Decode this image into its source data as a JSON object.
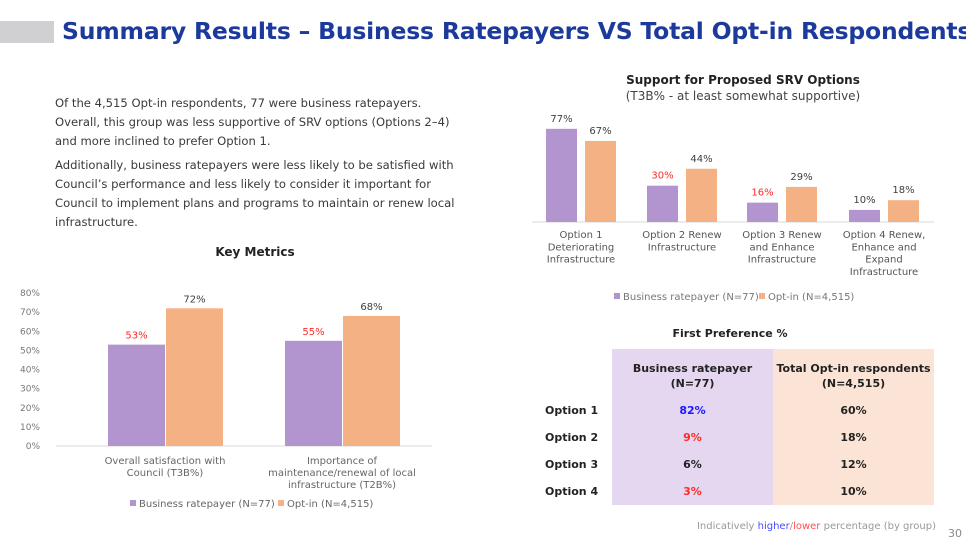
{
  "header": {
    "title": "Summary Results – Business Ratepayers VS Total Opt-in Respondents"
  },
  "intro": {
    "paragraph1": "Of the 4,515 Opt-in respondents, 77 were business ratepayers. Overall, this group was less supportive of SRV options (Options 2–4) and more inclined to prefer Option 1.",
    "paragraph2": "Additionally, business ratepayers were less likely to be satisfied with Council’s performance and less likely to consider it important for Council to implement plans and programs to maintain or renew local infrastructure."
  },
  "colors": {
    "business": "#b294cf",
    "optin": "#f4b183",
    "higher": "#1a1aff",
    "lower": "#ff2a2a",
    "title": "#1b3a9c"
  },
  "chart_data": [
    {
      "type": "bar",
      "title": "Key Metrics",
      "categories": [
        "Overall satisfaction with Council (T3B%)",
        "Importance of maintenance/renewal of local infrastructure (T2B%)"
      ],
      "series": [
        {
          "name": "Business ratepayer (N=77)",
          "values": [
            53,
            55
          ],
          "label_color": [
            "lower",
            "lower"
          ]
        },
        {
          "name": "Opt-in (N=4,515)",
          "values": [
            72,
            68
          ]
        }
      ],
      "ylim": [
        0,
        80
      ],
      "yticks": [
        "0%",
        "10%",
        "20%",
        "30%",
        "40%",
        "50%",
        "60%",
        "70%",
        "80%"
      ],
      "legend": "bottom"
    },
    {
      "type": "bar",
      "title": "Support for Proposed SRV Options",
      "subtitle": "(T3B% - at least somewhat supportive)",
      "categories": [
        "Option 1 Deteriorating Infrastructure",
        "Option 2 Renew Infrastructure",
        "Option 3 Renew and Enhance Infrastructure",
        "Option 4 Renew, Enhance and Expand Infrastructure"
      ],
      "series": [
        {
          "name": "Business ratepayer (N=77)",
          "values": [
            77,
            30,
            16,
            10
          ],
          "label_color": [
            "normal",
            "lower",
            "lower",
            "normal"
          ]
        },
        {
          "name": "Opt-in (N=4,515)",
          "values": [
            67,
            44,
            29,
            18
          ]
        }
      ],
      "legend": "bottom"
    },
    {
      "type": "table",
      "title": "First Preference %",
      "columns": [
        "Business ratepayer (N=77)",
        "Total Opt-in respondents (N=4,515)"
      ],
      "rows": [
        {
          "label": "Option 1",
          "business": "82%",
          "optin": "60%",
          "flag": "higher"
        },
        {
          "label": "Option 2",
          "business": "9%",
          "optin": "18%",
          "flag": "lower"
        },
        {
          "label": "Option 3",
          "business": "6%",
          "optin": "12%",
          "flag": "normal"
        },
        {
          "label": "Option 4",
          "business": "3%",
          "optin": "10%",
          "flag": "lower"
        }
      ]
    }
  ],
  "footer": {
    "note_pre": "Indicatively ",
    "note_higher": "higher",
    "note_slash": "/",
    "note_lower": "lower",
    "note_post": " percentage (by group)",
    "page": "30"
  }
}
